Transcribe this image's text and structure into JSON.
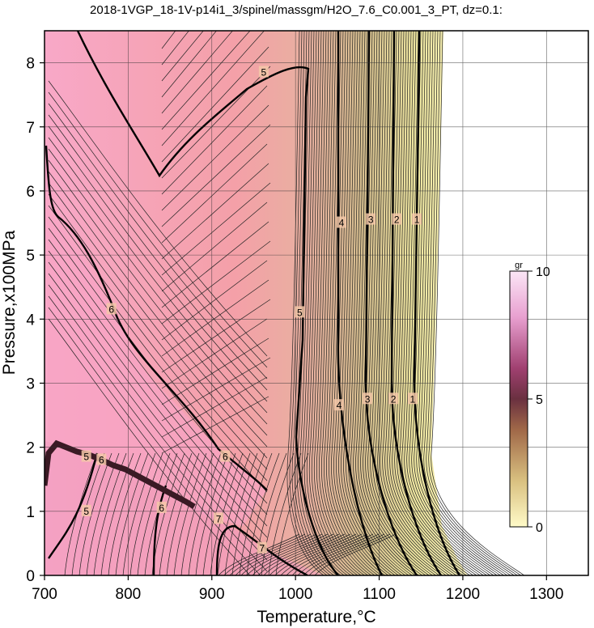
{
  "chart_data": {
    "type": "heatmap",
    "title": "2018-1VGP_18-1V-p14i1_3/spinel/massgm/H2O_7.6_C0.001_3_PT, dz=0.1:",
    "xlabel": "Temperature,°C",
    "ylabel": "Pressure,x100MPa",
    "xlim": [
      700,
      1350
    ],
    "ylim": [
      0,
      8.5
    ],
    "xticks": [
      "700",
      "800",
      "900",
      "1000",
      "1100",
      "1200",
      "1300"
    ],
    "yticks": [
      "0",
      "1",
      "2",
      "3",
      "4",
      "5",
      "6",
      "7",
      "8"
    ],
    "grid": true,
    "colorbar": {
      "unit": "gr",
      "min": 0,
      "max": 10,
      "ticks": [
        "0",
        "5",
        "10"
      ],
      "placement": "right",
      "colors": [
        "#fffbc8",
        "#d9c080",
        "#a06848",
        "#6a3040",
        "#a04070",
        "#e8a0d0",
        "#fbe6f6"
      ]
    },
    "contour_labels": [
      {
        "text": "5",
        "x": 1005,
        "y": 4.1
      },
      {
        "text": "4",
        "x": 1055,
        "y": 5.5
      },
      {
        "text": "4",
        "x": 1052,
        "y": 2.65
      },
      {
        "text": "3",
        "x": 1090,
        "y": 5.55
      },
      {
        "text": "3",
        "x": 1086,
        "y": 2.75
      },
      {
        "text": "2",
        "x": 1121,
        "y": 5.55
      },
      {
        "text": "2",
        "x": 1117,
        "y": 2.75
      },
      {
        "text": "1",
        "x": 1145,
        "y": 5.55
      },
      {
        "text": "1",
        "x": 1140,
        "y": 2.75
      },
      {
        "text": "5",
        "x": 962,
        "y": 7.85
      },
      {
        "text": "6",
        "x": 780,
        "y": 4.15
      },
      {
        "text": "6",
        "x": 916,
        "y": 1.85
      },
      {
        "text": "5",
        "x": 750,
        "y": 1.85
      },
      {
        "text": "6",
        "x": 768,
        "y": 1.8
      },
      {
        "text": "5",
        "x": 750,
        "y": 1.0
      },
      {
        "text": "6",
        "x": 840,
        "y": 1.05
      },
      {
        "text": "7",
        "x": 908,
        "y": 0.88
      },
      {
        "text": "7",
        "x": 960,
        "y": 0.42
      }
    ]
  }
}
